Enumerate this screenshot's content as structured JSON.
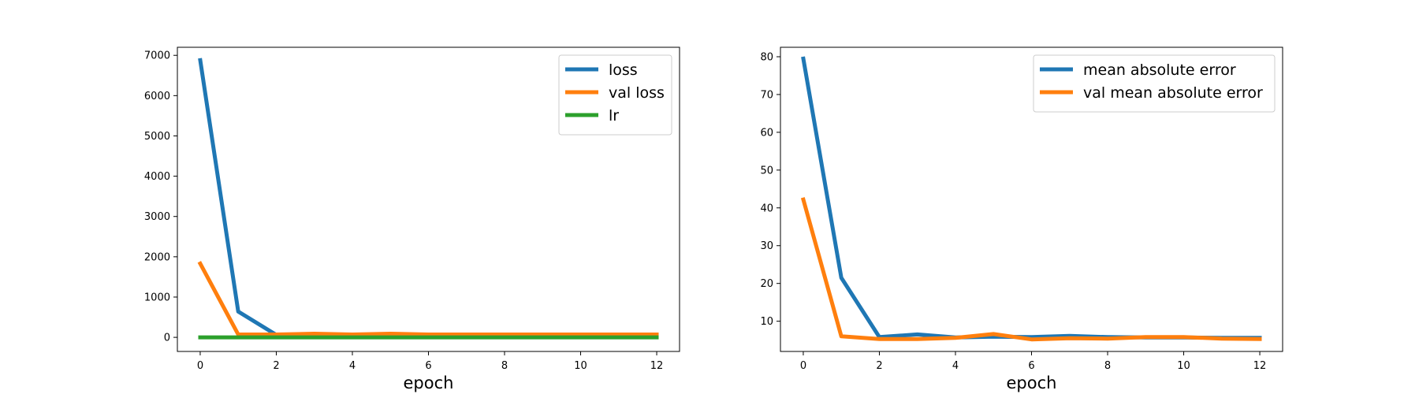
{
  "chart_data": [
    {
      "type": "line",
      "xlabel": "epoch",
      "ylabel": "",
      "x": [
        0,
        1,
        2,
        3,
        4,
        5,
        6,
        7,
        8,
        9,
        10,
        11,
        12
      ],
      "xlim": [
        -0.6,
        12.6
      ],
      "ylim": [
        -350,
        7200
      ],
      "xticks": [
        0,
        2,
        4,
        6,
        8,
        10,
        12
      ],
      "yticks": [
        0,
        1000,
        2000,
        3000,
        4000,
        5000,
        6000,
        7000
      ],
      "grid": false,
      "legend_position": "top-right",
      "series": [
        {
          "name": "loss",
          "color": "#1f77b4",
          "values": [
            6880,
            640,
            60,
            60,
            60,
            60,
            60,
            60,
            60,
            60,
            60,
            60,
            60
          ]
        },
        {
          "name": "val loss",
          "color": "#ff7f0e",
          "values": [
            1830,
            70,
            70,
            90,
            70,
            90,
            70,
            70,
            70,
            70,
            70,
            70,
            70
          ]
        },
        {
          "name": "lr",
          "color": "#2ca02c",
          "values": [
            0.001,
            0.001,
            0.001,
            0.001,
            0.001,
            0.001,
            0.001,
            0.001,
            0.001,
            0.001,
            0.001,
            0.001,
            0.001
          ]
        }
      ]
    },
    {
      "type": "line",
      "xlabel": "epoch",
      "ylabel": "",
      "x": [
        0,
        1,
        2,
        3,
        4,
        5,
        6,
        7,
        8,
        9,
        10,
        11,
        12
      ],
      "xlim": [
        -0.6,
        12.6
      ],
      "ylim": [
        2,
        82.5
      ],
      "xticks": [
        0,
        2,
        4,
        6,
        8,
        10,
        12
      ],
      "yticks": [
        10,
        20,
        30,
        40,
        50,
        60,
        70,
        80
      ],
      "grid": false,
      "legend_position": "top-right",
      "series": [
        {
          "name": "mean absolute error",
          "color": "#1f77b4",
          "values": [
            79.5,
            21.5,
            5.8,
            6.5,
            5.7,
            5.9,
            5.8,
            6.1,
            5.8,
            5.7,
            5.7,
            5.6,
            5.6
          ]
        },
        {
          "name": "val mean absolute error",
          "color": "#ff7f0e",
          "values": [
            42.2,
            6.0,
            5.3,
            5.3,
            5.6,
            6.6,
            5.2,
            5.5,
            5.4,
            5.8,
            5.8,
            5.4,
            5.3
          ]
        }
      ]
    }
  ]
}
